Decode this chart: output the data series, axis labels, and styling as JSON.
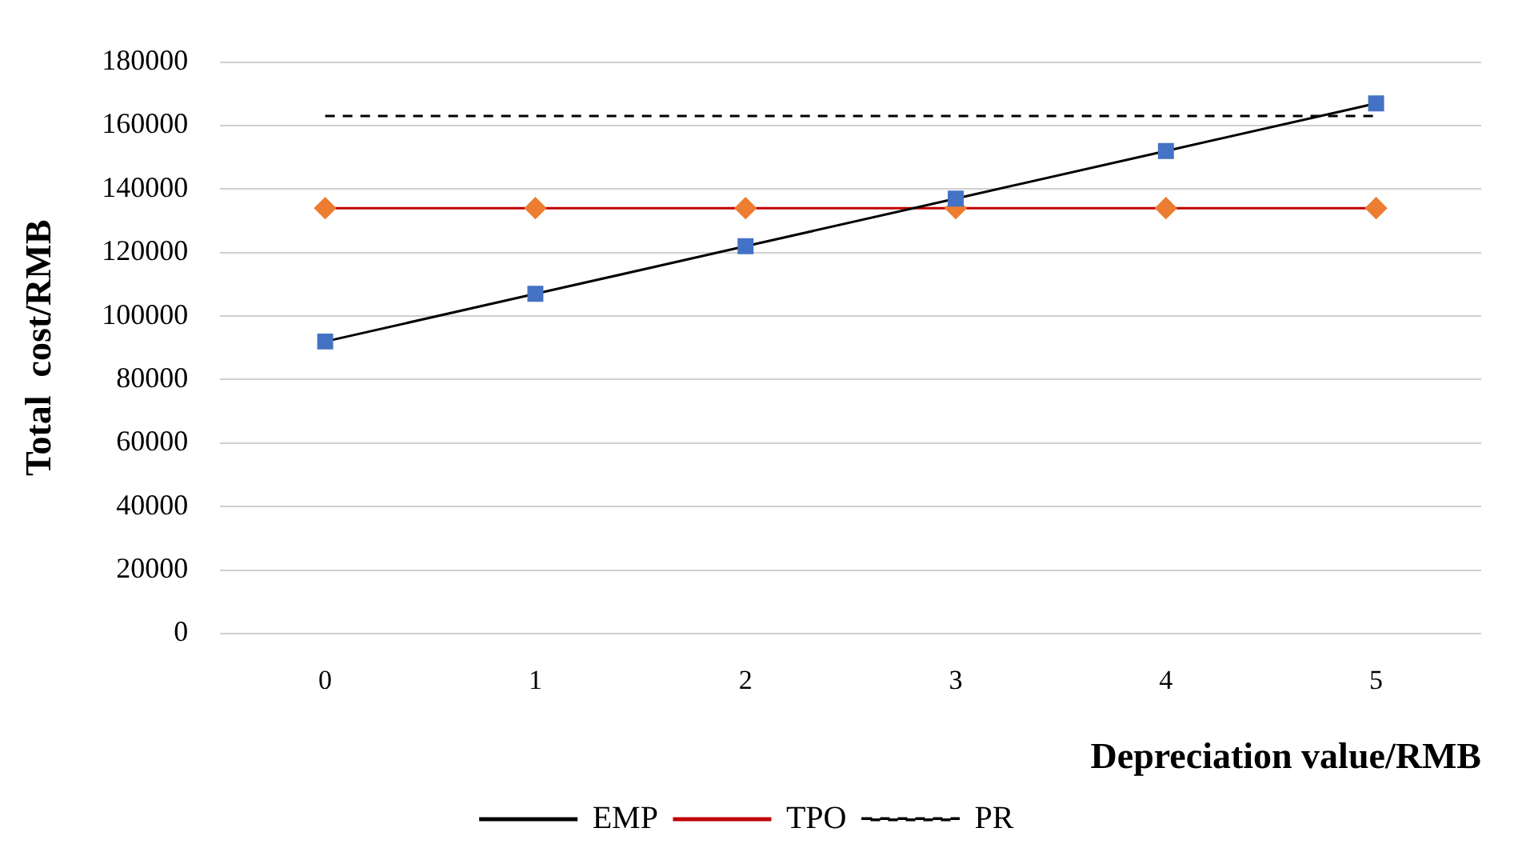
{
  "chart_data": {
    "type": "line",
    "xlabel": "Depreciation value/RMB",
    "ylabel": "Total  cost/RMB",
    "categories": [
      "0",
      "1",
      "2",
      "3",
      "4",
      "5"
    ],
    "series": [
      {
        "name": "EMP",
        "color": "#000000",
        "colors": [
          "#4472c4",
          "#4472c4",
          "#4472c4",
          "#4472c4",
          "#4472c4",
          "#4472c4"
        ],
        "marker": "square",
        "line_style": "solid",
        "values": [
          92000,
          107000,
          122000,
          137000,
          152000,
          167000
        ]
      },
      {
        "name": "TPO",
        "color": "#c00000",
        "colors": [
          "#ed7d31",
          "#ed7d31",
          "#ed7d31",
          "#ed7d31",
          "#ed7d31",
          "#ed7d31"
        ],
        "marker": "diamond",
        "line_style": "solid",
        "values": [
          134000,
          134000,
          134000,
          134000,
          134000,
          134000
        ]
      },
      {
        "name": "PR",
        "color": "#000000",
        "marker": "none",
        "line_style": "dashed",
        "values": [
          163000,
          163000,
          163000,
          163000,
          163000,
          163000
        ]
      }
    ],
    "ylim": [
      0,
      180000
    ],
    "yticks": [
      0,
      20000,
      40000,
      60000,
      80000,
      100000,
      120000,
      140000,
      160000,
      180000
    ],
    "grid": "y",
    "legend": "bottom"
  }
}
